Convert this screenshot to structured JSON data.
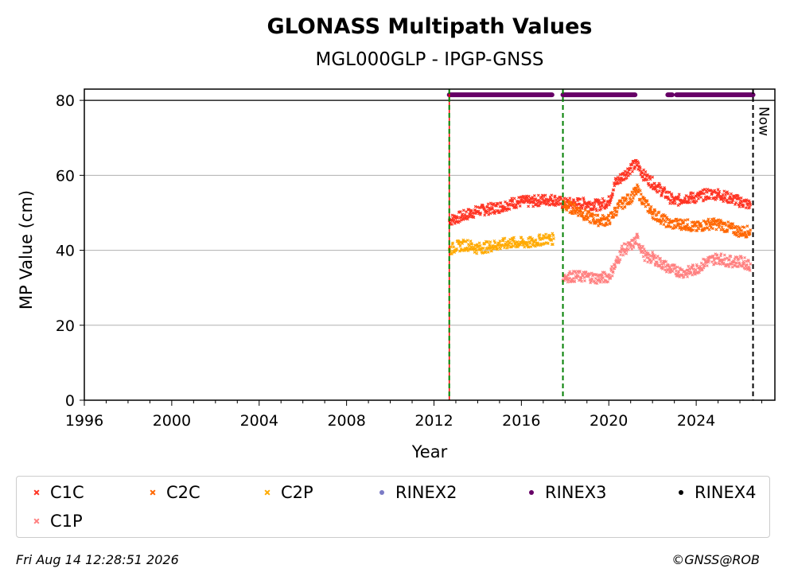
{
  "chart_data": {
    "type": "scatter",
    "title": "GLONASS Multipath Values",
    "subtitle": "MGL000GLP - IPGP-GNSS",
    "xlabel": "Year",
    "ylabel": "MP Value (cm)",
    "xlim": [
      1996,
      2027.6
    ],
    "ylim": [
      0,
      83
    ],
    "xticks": [
      "1996",
      "2000",
      "2004",
      "2008",
      "2012",
      "2016",
      "2020",
      "2024"
    ],
    "yticks": [
      "0",
      "20",
      "40",
      "60",
      "80"
    ],
    "grid": "horizontal",
    "legend_position": "below",
    "now_label": "Now",
    "now_x": 2026.6,
    "event_lines_x": [
      2012.7,
      2017.9
    ],
    "rinex_band_y": 81.5,
    "rinex3_segments": [
      [
        2012.7,
        2017.4
      ],
      [
        2017.9,
        2021.2
      ],
      [
        2022.7,
        2022.9
      ],
      [
        2023.1,
        2026.6
      ]
    ],
    "series": [
      {
        "name": "C1C",
        "color": "#ff3322",
        "marker": "x",
        "points": [
          [
            2012.7,
            48
          ],
          [
            2013.0,
            48.5
          ],
          [
            2013.5,
            49.5
          ],
          [
            2014.0,
            50.5
          ],
          [
            2014.5,
            51
          ],
          [
            2015.0,
            51.5
          ],
          [
            2015.5,
            52.5
          ],
          [
            2016.0,
            53
          ],
          [
            2016.5,
            53
          ],
          [
            2017.0,
            53.5
          ],
          [
            2017.5,
            53.5
          ],
          [
            2017.9,
            52.5
          ],
          [
            2018.5,
            52.5
          ],
          [
            2019.0,
            52.5
          ],
          [
            2019.5,
            52
          ],
          [
            2020.0,
            53
          ],
          [
            2020.3,
            58
          ],
          [
            2020.7,
            60
          ],
          [
            2021.0,
            62
          ],
          [
            2021.3,
            63
          ],
          [
            2021.6,
            60
          ],
          [
            2022.0,
            58
          ],
          [
            2022.8,
            54
          ],
          [
            2023.0,
            53
          ],
          [
            2023.5,
            54
          ],
          [
            2024.0,
            54
          ],
          [
            2024.5,
            55
          ],
          [
            2025.0,
            55
          ],
          [
            2025.5,
            54
          ],
          [
            2026.0,
            53
          ],
          [
            2026.5,
            52
          ]
        ]
      },
      {
        "name": "C2C",
        "color": "#ff6600",
        "marker": "x",
        "points": [
          [
            2017.9,
            52
          ],
          [
            2018.5,
            51
          ],
          [
            2019.0,
            49
          ],
          [
            2019.5,
            48
          ],
          [
            2020.0,
            48
          ],
          [
            2020.5,
            52
          ],
          [
            2021.0,
            54
          ],
          [
            2021.3,
            56
          ],
          [
            2021.6,
            53
          ],
          [
            2022.0,
            50
          ],
          [
            2022.8,
            47
          ],
          [
            2023.5,
            47
          ],
          [
            2024.0,
            46
          ],
          [
            2024.5,
            47
          ],
          [
            2025.0,
            47
          ],
          [
            2025.5,
            46
          ],
          [
            2026.0,
            45
          ],
          [
            2026.5,
            45
          ]
        ]
      },
      {
        "name": "C2P",
        "color": "#ffaa00",
        "marker": "x",
        "points": [
          [
            2012.7,
            40
          ],
          [
            2013.0,
            41
          ],
          [
            2013.5,
            41.5
          ],
          [
            2014.0,
            40.5
          ],
          [
            2014.5,
            41
          ],
          [
            2015.0,
            41.5
          ],
          [
            2015.5,
            42
          ],
          [
            2016.0,
            42
          ],
          [
            2016.5,
            42
          ],
          [
            2017.0,
            43
          ],
          [
            2017.5,
            43
          ]
        ]
      },
      {
        "name": "RINEX2",
        "color": "#7b7bc6",
        "marker": "o",
        "points": []
      },
      {
        "name": "RINEX3",
        "color": "#660066",
        "marker": "o",
        "points": []
      },
      {
        "name": "RINEX4",
        "color": "#000000",
        "marker": "o",
        "points": []
      },
      {
        "name": "C1P",
        "color": "#ff8080",
        "marker": "x",
        "points": [
          [
            2017.9,
            33
          ],
          [
            2018.5,
            33
          ],
          [
            2019.0,
            33
          ],
          [
            2019.5,
            32.5
          ],
          [
            2020.0,
            33
          ],
          [
            2020.3,
            36
          ],
          [
            2020.6,
            40
          ],
          [
            2021.0,
            41
          ],
          [
            2021.3,
            43
          ],
          [
            2021.7,
            38
          ],
          [
            2022.0,
            38
          ],
          [
            2022.8,
            35
          ],
          [
            2023.5,
            34
          ],
          [
            2024.0,
            35
          ],
          [
            2024.5,
            37
          ],
          [
            2025.0,
            38
          ],
          [
            2025.5,
            37
          ],
          [
            2026.0,
            37
          ],
          [
            2026.5,
            36
          ]
        ]
      }
    ]
  },
  "footer": {
    "timestamp": "Fri Aug 14 12:28:51 2026",
    "copyright": "©GNSS@ROB"
  }
}
